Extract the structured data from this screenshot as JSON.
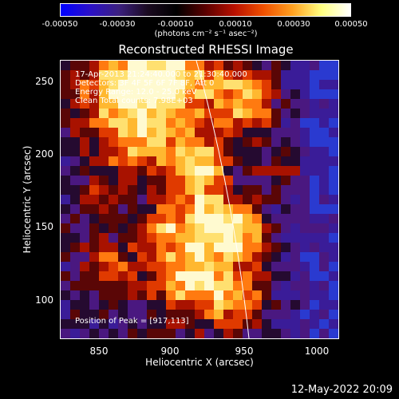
{
  "colorbar": {
    "ticks": [
      "-0.00050",
      "-0.00030",
      "-0.00010",
      "0.00010",
      "0.00030",
      "0.00050"
    ],
    "unit": "(photons cm⁻² s⁻¹ asec⁻²)",
    "colors": [
      "#0000ff",
      "#2a10c8",
      "#3c2080",
      "#1a0a20",
      "#000000",
      "#5a0000",
      "#b81000",
      "#f05000",
      "#ffa020",
      "#ffff80",
      "#ffffff"
    ]
  },
  "plot": {
    "title": "Reconstructed RHESSI Image",
    "x_label": "Heliocentric X (arcsec)",
    "y_label": "Heliocentric Y (arcsec)",
    "x_ticks": [
      "850",
      "900",
      "950",
      "1000"
    ],
    "y_ticks": [
      "250",
      "200",
      "150",
      "100"
    ],
    "x_range": [
      825,
      1015
    ],
    "y_range": [
      70,
      265
    ],
    "annotations": {
      "time_range": "17-Apr-2013 21:24:40.000 to 21:30:40.000",
      "detectors": "Detectors: 3F 4F 5F 6F 7F 8F, Att 0",
      "energy": "Energy Range: 12.0 - 25.0 keV",
      "method": "Clean     Total counts: 7.98E+03",
      "peak": "Position of Peak = [917,113]"
    }
  },
  "timestamp": "12-May-2022 20:09"
}
